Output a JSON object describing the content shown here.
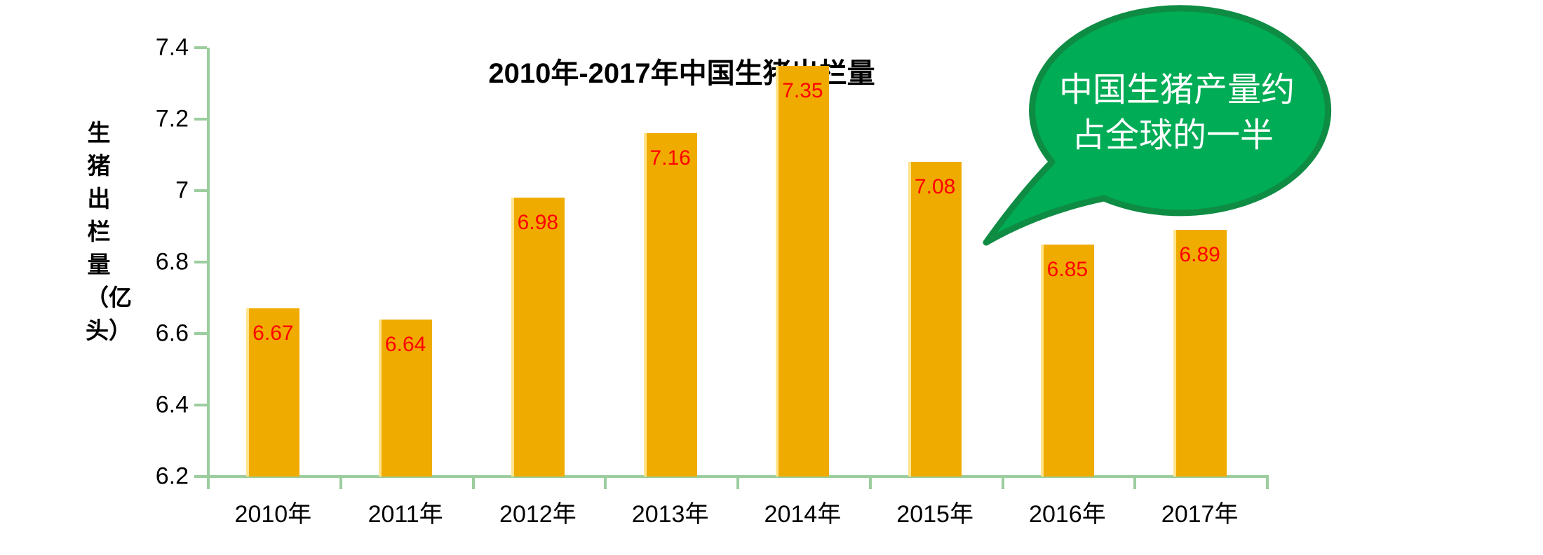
{
  "chart_data": {
    "type": "bar",
    "title": "2010年-2017年中国生猪出栏量",
    "ylabel": "生猪出栏量（亿头）",
    "categories": [
      "2010年",
      "2011年",
      "2012年",
      "2013年",
      "2014年",
      "2015年",
      "2016年",
      "2017年"
    ],
    "values": [
      6.67,
      6.64,
      6.98,
      7.16,
      7.35,
      7.08,
      6.85,
      6.89
    ],
    "value_labels": [
      "6.67",
      "6.64",
      "6.98",
      "7.16",
      "7.35",
      "7.08",
      "6.85",
      "6.89"
    ],
    "ylim": [
      6.2,
      7.4
    ],
    "ytick_labels": [
      "6.2",
      "6.4",
      "6.6",
      "6.8",
      "7",
      "7.2",
      "7.4"
    ],
    "grid": "off",
    "legend": "none",
    "bar_color": "#F0AB00",
    "bar_edge_color": "#FFE48C",
    "value_label_color": "#FF0000",
    "axis_color": "#9CCD9E",
    "title_color": "#000000"
  },
  "annotation": {
    "lines": [
      "中国生猪产量约",
      "占全球的一半"
    ],
    "fill_color": "#00AC55",
    "border_color": "#0E8C43",
    "text_color": "#FFFFFF"
  }
}
